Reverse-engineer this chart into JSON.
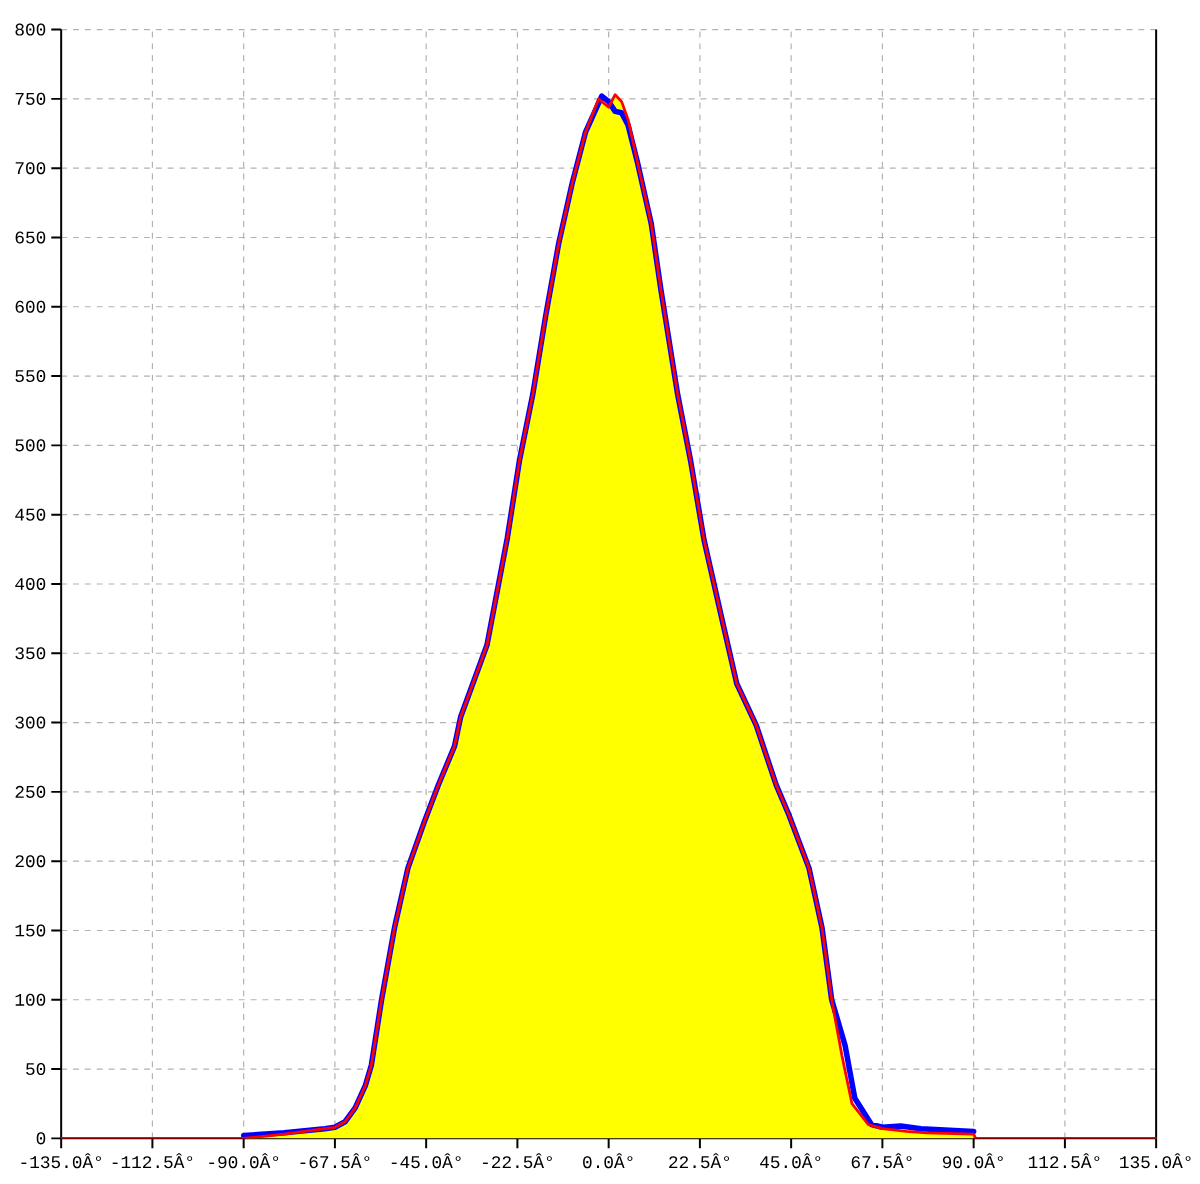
{
  "chart_data": {
    "type": "area",
    "xlim": [
      -135,
      135
    ],
    "ylim": [
      0,
      800
    ],
    "xticks": [
      {
        "value": -135,
        "label": "-135.0Â°"
      },
      {
        "value": -112.5,
        "label": "-112.5Â°"
      },
      {
        "value": -90,
        "label": "-90.0Â°"
      },
      {
        "value": -67.5,
        "label": "-67.5Â°"
      },
      {
        "value": -45,
        "label": "-45.0Â°"
      },
      {
        "value": -22.5,
        "label": "-22.5Â°"
      },
      {
        "value": 0,
        "label": "0.0Â°"
      },
      {
        "value": 22.5,
        "label": "22.5Â°"
      },
      {
        "value": 45,
        "label": "45.0Â°"
      },
      {
        "value": 67.5,
        "label": "67.5Â°"
      },
      {
        "value": 90,
        "label": "90.0Â°"
      },
      {
        "value": 112.5,
        "label": "112.5Â°"
      },
      {
        "value": 135,
        "label": "135.0Â°"
      }
    ],
    "yticks": [
      0,
      50,
      100,
      150,
      200,
      250,
      300,
      350,
      400,
      450,
      500,
      550,
      600,
      650,
      700,
      750,
      800
    ],
    "grid": true,
    "series": [
      {
        "color": "#ffff00",
        "x": [
          -90,
          -80,
          -70,
          -67.5,
          -65,
          -62.5,
          -60,
          -58.5,
          -56,
          -52.8,
          -49.5,
          -45.5,
          -42,
          -38,
          -36.5,
          -30,
          -25,
          -22,
          -18.7,
          -15.5,
          -12.3,
          -9,
          -5.7,
          -2.5,
          0,
          1.6,
          3.2,
          4.8,
          7.2,
          10.5,
          12.9,
          17,
          20.2,
          23.5,
          28.3,
          31.6,
          36.4,
          41.3,
          44.5,
          49.4,
          52.6,
          55,
          57.5,
          60,
          64,
          67.5,
          73.5,
          78.4,
          90
        ],
        "values": [
          0,
          3,
          7,
          8,
          12,
          22,
          38,
          53,
          100,
          152,
          195,
          228,
          255,
          283,
          304,
          356,
          433,
          489,
          537,
          594,
          646,
          689,
          726,
          750,
          744,
          753,
          748,
          735,
          703,
          660,
          612,
          537,
          489,
          432,
          370,
          328,
          298,
          255,
          233,
          195,
          152,
          100,
          60,
          25,
          10,
          7,
          5,
          4,
          3
        ]
      },
      {
        "type": "line",
        "color": "#0000ff",
        "x": [
          -90,
          -80,
          -70,
          -67.5,
          -65,
          -62.5,
          -60,
          -58.5,
          -56,
          -52.8,
          -49.5,
          -45.5,
          -42,
          -38,
          -36.5,
          -30,
          -25,
          -22,
          -18.7,
          -15.5,
          -12.3,
          -9,
          -5.7,
          -1.7,
          0,
          1.6,
          3.2,
          4.8,
          7.2,
          10.5,
          12.9,
          17,
          20.2,
          23.5,
          28.3,
          31.6,
          36.4,
          41.3,
          44.5,
          49.4,
          52.6,
          55,
          58.3,
          60.7,
          64.8,
          67.5,
          72,
          77,
          90
        ],
        "values": [
          2,
          4,
          7,
          8,
          12,
          22,
          38,
          53,
          100,
          152,
          195,
          228,
          255,
          283,
          304,
          356,
          433,
          489,
          537,
          594,
          646,
          689,
          726,
          752,
          748,
          741,
          740,
          731,
          703,
          660,
          612,
          537,
          489,
          432,
          370,
          328,
          298,
          255,
          233,
          195,
          152,
          100,
          67,
          29,
          10,
          8,
          9,
          7,
          5
        ]
      },
      {
        "type": "line",
        "color": "#ff0000",
        "x": [
          -135,
          -90,
          -80,
          -70,
          -67.5,
          -65,
          -62.5,
          -60,
          -58.5,
          -56,
          -52.8,
          -49.5,
          -45.5,
          -42,
          -38,
          -36.5,
          -30,
          -25,
          -22,
          -18.7,
          -15.5,
          -12.3,
          -9,
          -5.7,
          -2.5,
          0,
          1.6,
          3.2,
          4.8,
          7.2,
          10.5,
          12.9,
          17,
          20.2,
          23.5,
          28.3,
          31.6,
          36.4,
          41.3,
          44.5,
          49.4,
          52.6,
          55,
          57.5,
          60,
          64,
          67.5,
          73.5,
          78.4,
          90,
          90.5,
          135
        ],
        "values": [
          0,
          0,
          3,
          7,
          8,
          12,
          22,
          38,
          53,
          100,
          152,
          195,
          228,
          255,
          283,
          304,
          356,
          433,
          489,
          537,
          594,
          646,
          689,
          726,
          750,
          744,
          753,
          748,
          735,
          703,
          660,
          612,
          537,
          489,
          432,
          370,
          328,
          298,
          255,
          233,
          195,
          152,
          100,
          60,
          25,
          10,
          7,
          5,
          4,
          3,
          0,
          0
        ]
      }
    ]
  }
}
